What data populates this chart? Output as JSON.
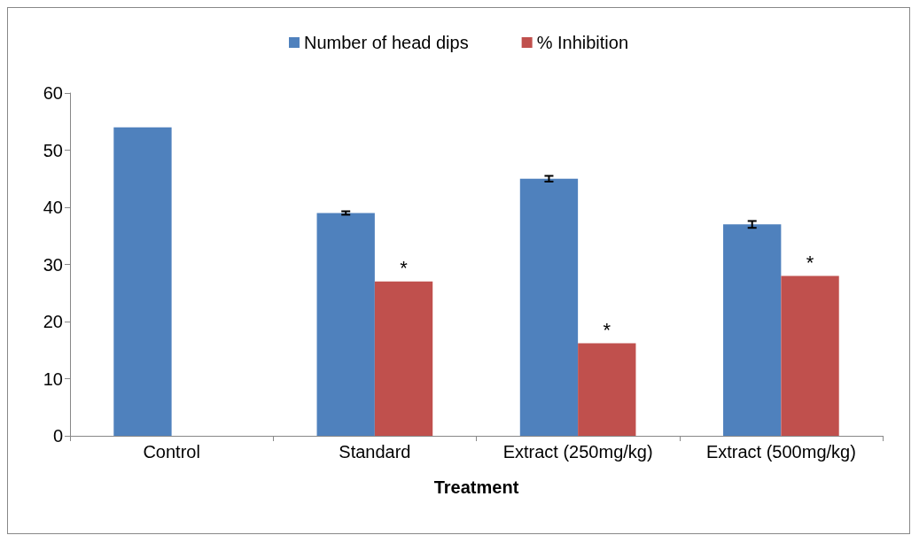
{
  "chart_data": {
    "type": "bar",
    "xlabel": "Treatment",
    "categories": [
      "Control",
      "Standard",
      "Extract (250mg/kg)",
      "Extract (500mg/kg)"
    ],
    "series": [
      {
        "name": "Number of head dips",
        "color": "#4f81bd",
        "values": [
          54,
          39,
          45,
          37
        ],
        "errors": [
          null,
          0.3,
          0.5,
          0.6
        ]
      },
      {
        "name": "% Inhibition",
        "color": "#c0504d",
        "values": [
          null,
          27,
          16.2,
          28
        ]
      }
    ],
    "ylim": [
      0,
      60
    ],
    "yticks": [
      0,
      10,
      20,
      30,
      40,
      50,
      60
    ],
    "grid": false,
    "legend": "top",
    "annotations": [
      {
        "text": "*",
        "x": "Standard",
        "y": 27
      },
      {
        "text": "*",
        "x": "Extract (250mg/kg)",
        "y": 16.2
      },
      {
        "text": "*",
        "x": "Extract (500mg/kg)",
        "y": 28
      }
    ]
  }
}
